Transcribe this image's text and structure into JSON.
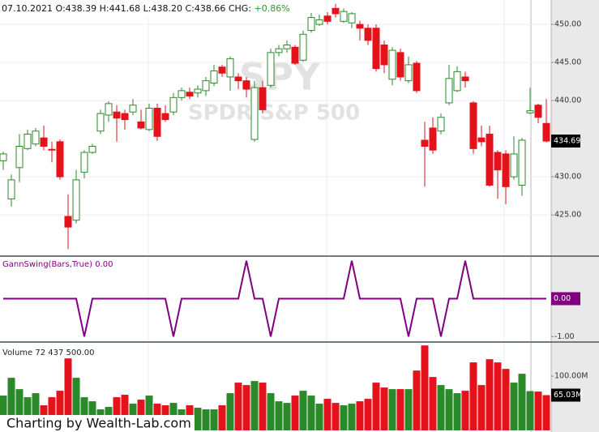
{
  "footer": "Charting by Wealth-Lab.com",
  "chart_data": [
    {
      "type": "candlestick",
      "title": "07.10.2021",
      "header": [
        "O:438.39",
        "H:441.68",
        "L:438.20",
        "C:438.66"
      ],
      "change_label": "CHG:",
      "change": "+0.86%",
      "watermark": "SPY",
      "watermark_subtitle": "SPDR S&P 500",
      "up_color": "#2a8a2a",
      "down_color": "#e3121b",
      "change_color": "#2a9a2a",
      "ylim": [
        419.8,
        453.2
      ],
      "yticks": [
        {
          "value": 425,
          "label": "425.00"
        },
        {
          "value": 430,
          "label": "430.00"
        },
        {
          "value": 440,
          "label": "440.00"
        },
        {
          "value": 445,
          "label": "445.00"
        },
        {
          "value": 450,
          "label": "450.00"
        }
      ],
      "last_label": {
        "value": 434.69,
        "label": "434.69"
      },
      "grid": true,
      "ohlc": [
        [
          432.1,
          433.3,
          430.9,
          433.0
        ],
        [
          427.1,
          430.3,
          426.1,
          429.6
        ],
        [
          431.2,
          435.6,
          429.3,
          434.0
        ],
        [
          433.7,
          436.2,
          433.5,
          435.6
        ],
        [
          434.3,
          436.4,
          434.0,
          436.0
        ],
        [
          435.1,
          436.7,
          433.5,
          434.0
        ],
        [
          433.6,
          434.6,
          431.9,
          433.5
        ],
        [
          434.6,
          434.9,
          429.6,
          430.0
        ],
        [
          424.8,
          427.7,
          420.5,
          423.4
        ],
        [
          424.3,
          430.9,
          423.9,
          429.6
        ],
        [
          430.6,
          433.5,
          429.8,
          433.2
        ],
        [
          433.2,
          434.3,
          433.0,
          434.0
        ],
        [
          436.0,
          438.8,
          435.6,
          438.3
        ],
        [
          438.1,
          439.9,
          437.2,
          439.6
        ],
        [
          438.5,
          439.4,
          434.6,
          437.7
        ],
        [
          438.3,
          438.8,
          436.2,
          437.5
        ],
        [
          438.5,
          440.2,
          438.1,
          439.4
        ],
        [
          437.2,
          438.8,
          436.2,
          436.4
        ],
        [
          436.2,
          439.6,
          436.0,
          439.0
        ],
        [
          439.0,
          439.6,
          434.7,
          435.3
        ],
        [
          438.3,
          439.4,
          437.2,
          437.5
        ],
        [
          438.5,
          441.0,
          438.1,
          440.4
        ],
        [
          440.4,
          441.7,
          440.0,
          441.3
        ],
        [
          441.1,
          441.7,
          440.2,
          440.6
        ],
        [
          441.0,
          442.0,
          440.4,
          441.5
        ],
        [
          441.3,
          443.1,
          440.6,
          442.6
        ],
        [
          442.3,
          444.7,
          441.9,
          443.9
        ],
        [
          444.4,
          444.7,
          443.1,
          443.6
        ],
        [
          443.1,
          445.8,
          441.3,
          445.5
        ],
        [
          443.1,
          443.6,
          441.5,
          442.6
        ],
        [
          442.6,
          443.1,
          440.4,
          441.5
        ],
        [
          434.9,
          442.6,
          434.6,
          441.7
        ],
        [
          441.7,
          442.6,
          438.3,
          438.8
        ],
        [
          442.0,
          446.8,
          441.7,
          446.3
        ],
        [
          446.3,
          447.3,
          445.8,
          446.8
        ],
        [
          446.8,
          447.9,
          446.3,
          447.3
        ],
        [
          447.0,
          447.3,
          444.7,
          444.9
        ],
        [
          445.3,
          449.2,
          445.1,
          448.7
        ],
        [
          449.2,
          451.5,
          448.9,
          450.9
        ],
        [
          450.0,
          451.3,
          449.8,
          450.6
        ],
        [
          451.1,
          451.6,
          450.0,
          450.4
        ],
        [
          452.1,
          452.7,
          450.9,
          451.4
        ],
        [
          450.4,
          452.1,
          450.2,
          451.7
        ],
        [
          450.2,
          451.6,
          449.5,
          451.4
        ],
        [
          450.0,
          450.5,
          447.9,
          449.5
        ],
        [
          449.5,
          450.0,
          447.3,
          447.9
        ],
        [
          449.5,
          450.0,
          443.8,
          444.2
        ],
        [
          447.3,
          447.9,
          443.6,
          444.7
        ],
        [
          442.8,
          447.0,
          442.0,
          446.6
        ],
        [
          446.3,
          446.8,
          442.6,
          443.1
        ],
        [
          442.6,
          445.8,
          442.3,
          444.7
        ],
        [
          444.9,
          445.2,
          441.0,
          441.3
        ],
        [
          434.8,
          437.2,
          428.7,
          434.0
        ],
        [
          436.4,
          437.8,
          433.0,
          433.5
        ],
        [
          436.0,
          438.3,
          435.6,
          437.8
        ],
        [
          439.7,
          444.7,
          439.4,
          442.9
        ],
        [
          441.3,
          444.5,
          441.1,
          443.8
        ],
        [
          443.1,
          443.8,
          441.7,
          442.6
        ],
        [
          439.7,
          439.9,
          433.0,
          433.7
        ],
        [
          435.1,
          436.7,
          434.0,
          434.6
        ],
        [
          435.6,
          436.7,
          428.7,
          428.9
        ],
        [
          433.2,
          433.5,
          427.1,
          430.9
        ],
        [
          433.0,
          433.5,
          426.4,
          428.7
        ],
        [
          430.0,
          435.3,
          429.6,
          433.0
        ],
        [
          428.9,
          435.1,
          427.5,
          434.8
        ],
        [
          438.39,
          441.68,
          438.2,
          438.66
        ],
        [
          439.4,
          439.6,
          437.0,
          437.8
        ],
        [
          437.0,
          440.2,
          434.5,
          434.69
        ]
      ]
    },
    {
      "type": "line",
      "title": "GannSwing(Bars,True) 0.00",
      "color": "#800080",
      "ylim": [
        -1.1,
        1.1
      ],
      "yticks": [
        {
          "value": -1,
          "label": "-1.00"
        }
      ],
      "last_label": {
        "value": 0,
        "label": "0.00"
      },
      "values": [
        0,
        0,
        0,
        0,
        0,
        0,
        0,
        0,
        0,
        0,
        -1,
        0,
        0,
        0,
        0,
        0,
        0,
        0,
        0,
        0,
        0,
        -1,
        0,
        0,
        0,
        0,
        0,
        0,
        0,
        0,
        1,
        0,
        0,
        -1,
        0,
        0,
        0,
        0,
        0,
        0,
        0,
        0,
        0,
        1,
        0,
        0,
        0,
        0,
        0,
        0,
        -1,
        0,
        0,
        0,
        -1,
        0,
        0,
        1,
        0,
        0,
        0,
        0,
        0,
        0,
        0,
        0,
        0,
        0
      ]
    },
    {
      "type": "bar",
      "title": "Volume 72 437 500.00",
      "ylim": [
        0,
        160
      ],
      "yticks": [
        {
          "value": 100,
          "label": "100.00M"
        }
      ],
      "last_label": {
        "value": 65.03,
        "label": "65.03M"
      },
      "values": [
        64.2,
        97.0,
        76.1,
        61.2,
        68.7,
        46.3,
        61.2,
        73.1,
        132.8,
        97.0,
        61.2,
        53.7,
        38.8,
        43.3,
        61.2,
        65.7,
        49.3,
        56.7,
        64.2,
        49.3,
        46.3,
        50.7,
        38.8,
        46.3,
        41.8,
        38.8,
        38.8,
        46.3,
        68.7,
        88.1,
        83.6,
        91.0,
        88.1,
        68.7,
        53.7,
        50.7,
        64.2,
        73.1,
        64.2,
        49.3,
        58.2,
        50.7,
        46.3,
        49.3,
        53.7,
        58.2,
        88.1,
        79.1,
        76.1,
        76.1,
        76.1,
        110.4,
        156.7,
        98.5,
        83.6,
        76.1,
        68.7,
        73.1,
        125.4,
        83.6,
        131.3,
        125.4,
        113.4,
        88.1,
        104.5,
        72.44,
        71.6,
        65.03
      ]
    }
  ]
}
